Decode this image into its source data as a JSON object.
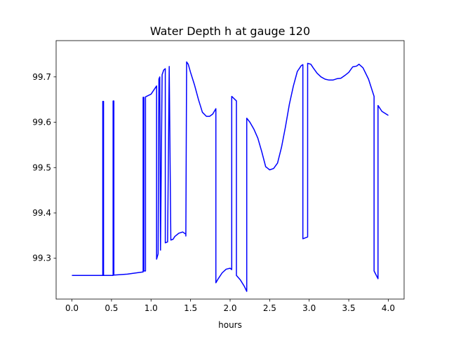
{
  "chart_data": {
    "type": "line",
    "title": "Water Depth h at gauge 120",
    "xlabel": "hours",
    "ylabel": "",
    "xlim": [
      -0.2,
      4.2
    ],
    "ylim": [
      99.21,
      99.78
    ],
    "xticks": [
      0.0,
      0.5,
      1.0,
      1.5,
      2.0,
      2.5,
      3.0,
      3.5,
      4.0
    ],
    "xtick_labels": [
      "0.0",
      "0.5",
      "1.0",
      "1.5",
      "2.0",
      "2.5",
      "3.0",
      "3.5",
      "4.0"
    ],
    "yticks": [
      99.3,
      99.4,
      99.5,
      99.6,
      99.7
    ],
    "ytick_labels": [
      "99.3",
      "99.4",
      "99.5",
      "99.6",
      "99.7"
    ],
    "grid": false,
    "legend": "none",
    "series": [
      {
        "color": "#0000ff",
        "x": [
          0.0,
          0.2,
          0.39,
          0.39,
          0.4,
          0.4,
          0.52,
          0.52,
          0.53,
          0.53,
          0.7,
          0.9,
          0.9,
          0.91,
          0.91,
          0.93,
          0.93,
          1.0,
          1.07,
          1.07,
          1.09,
          1.1,
          1.11,
          1.12,
          1.12,
          1.14,
          1.16,
          1.18,
          1.18,
          1.21,
          1.23,
          1.23,
          1.25,
          1.25,
          1.28,
          1.3,
          1.35,
          1.4,
          1.44,
          1.44,
          1.45,
          1.47,
          1.5,
          1.55,
          1.6,
          1.65,
          1.7,
          1.74,
          1.78,
          1.82,
          1.82,
          1.85,
          1.9,
          1.95,
          2.0,
          2.02,
          2.02,
          2.08,
          2.08,
          2.13,
          2.18,
          2.21,
          2.21,
          2.25,
          2.3,
          2.35,
          2.4,
          2.45,
          2.5,
          2.55,
          2.6,
          2.65,
          2.7,
          2.75,
          2.8,
          2.85,
          2.9,
          2.92,
          2.92,
          2.98,
          2.98,
          3.02,
          3.05,
          3.1,
          3.15,
          3.2,
          3.25,
          3.3,
          3.35,
          3.4,
          3.45,
          3.5,
          3.55,
          3.6,
          3.63,
          3.68,
          3.75,
          3.82,
          3.82,
          3.87,
          3.87,
          3.92,
          4.0
        ],
        "y": [
          99.262,
          99.262,
          99.262,
          99.646,
          99.646,
          99.262,
          99.262,
          99.647,
          99.647,
          99.263,
          99.265,
          99.27,
          99.655,
          99.655,
          99.272,
          99.272,
          99.656,
          99.662,
          99.68,
          99.298,
          99.31,
          99.695,
          99.7,
          99.318,
          99.322,
          99.705,
          99.715,
          99.718,
          99.334,
          99.336,
          99.722,
          99.723,
          99.34,
          99.34,
          99.342,
          99.348,
          99.355,
          99.358,
          99.353,
          99.349,
          99.733,
          99.728,
          99.71,
          99.682,
          99.65,
          99.622,
          99.613,
          99.613,
          99.618,
          99.63,
          99.246,
          99.255,
          99.268,
          99.276,
          99.278,
          99.275,
          99.657,
          99.647,
          99.262,
          99.252,
          99.238,
          99.227,
          99.609,
          99.6,
          99.585,
          99.565,
          99.535,
          99.502,
          99.495,
          99.498,
          99.51,
          99.545,
          99.59,
          99.64,
          99.68,
          99.712,
          99.725,
          99.727,
          99.343,
          99.347,
          99.73,
          99.728,
          99.72,
          99.708,
          99.7,
          99.695,
          99.693,
          99.693,
          99.696,
          99.697,
          99.703,
          99.71,
          99.722,
          99.724,
          99.728,
          99.72,
          99.695,
          99.657,
          99.272,
          99.255,
          99.637,
          99.624,
          99.615
        ]
      }
    ]
  }
}
